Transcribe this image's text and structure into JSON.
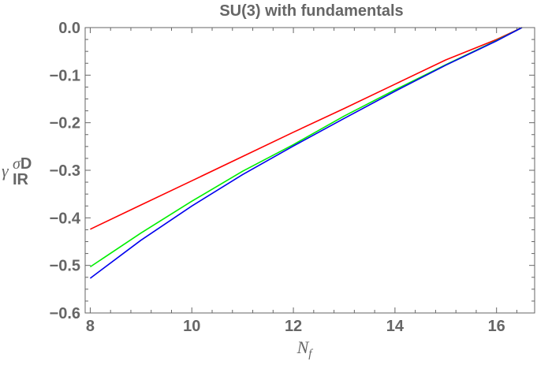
{
  "chart_data": {
    "type": "line",
    "title": "SU(3) with fundamentals",
    "xlabel": "N_f",
    "ylabel": "γ_IR^σD",
    "xlim": [
      7.9,
      16.75
    ],
    "ylim": [
      -0.6,
      0.0
    ],
    "xticks": [
      8,
      10,
      12,
      14,
      16
    ],
    "xtick_labels": [
      "8",
      "10",
      "12",
      "14",
      "16"
    ],
    "yticks": [
      0.0,
      -0.1,
      -0.2,
      -0.3,
      -0.4,
      -0.5,
      -0.6
    ],
    "ytick_labels": [
      "0.0",
      "−0.1",
      "−0.2",
      "−0.3",
      "−0.4",
      "−0.5",
      "−0.6"
    ],
    "grid": false,
    "series": [
      {
        "color": "#ff0000",
        "x": [
          8,
          9,
          10,
          11,
          12,
          13,
          14,
          15,
          16,
          16.5
        ],
        "y": [
          -0.424,
          -0.373,
          -0.322,
          -0.271,
          -0.22,
          -0.17,
          -0.119,
          -0.068,
          -0.025,
          0.0
        ]
      },
      {
        "color": "#00ee00",
        "x": [
          8,
          9,
          10,
          11,
          12,
          13,
          14,
          15,
          16,
          16.5
        ],
        "y": [
          -0.503,
          -0.432,
          -0.365,
          -0.302,
          -0.246,
          -0.186,
          -0.131,
          -0.078,
          -0.027,
          0.0
        ]
      },
      {
        "color": "#0000ee",
        "x": [
          8,
          9,
          10,
          11,
          12,
          13,
          14,
          15,
          16,
          16.5
        ],
        "y": [
          -0.527,
          -0.447,
          -0.375,
          -0.309,
          -0.249,
          -0.191,
          -0.134,
          -0.079,
          -0.028,
          0.0
        ]
      }
    ]
  }
}
